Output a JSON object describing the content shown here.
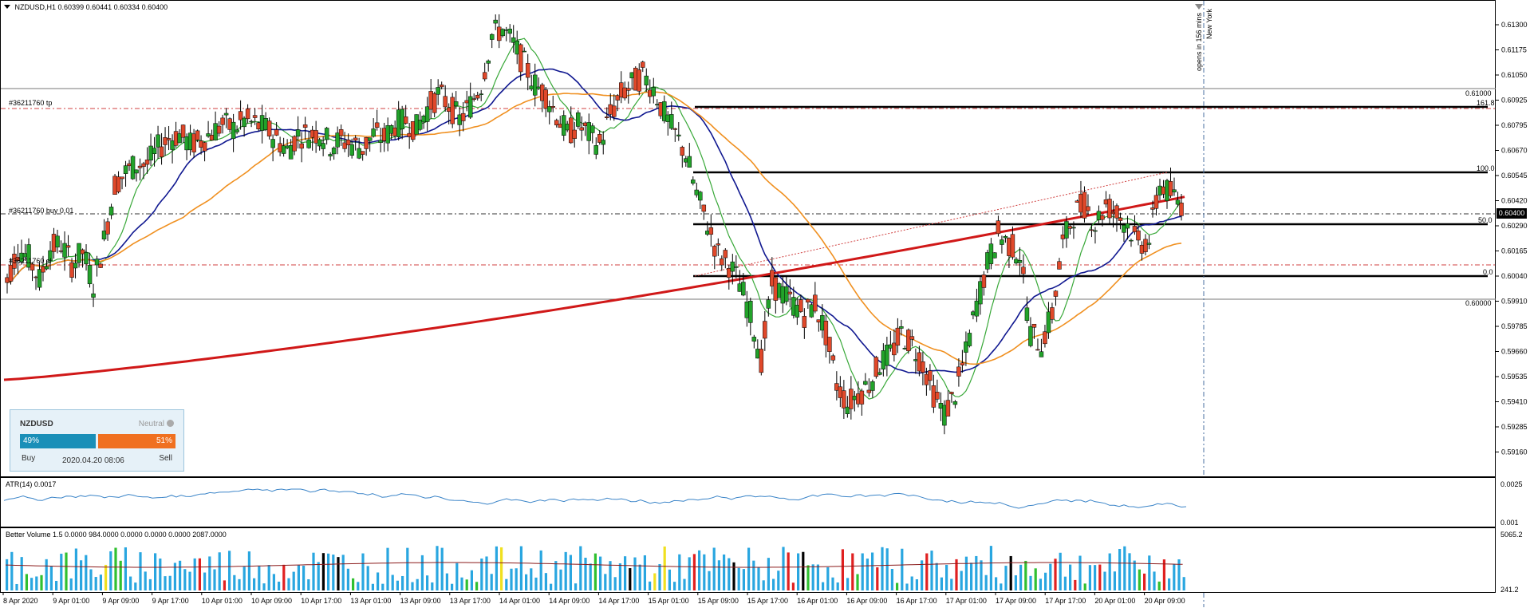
{
  "header": {
    "symbol_timeframe": "NZDUSD,H1",
    "ohlc": "0.60399 0.60441 0.60334 0.60400"
  },
  "price_axis": {
    "labels": [
      "0.61300",
      "0.61175",
      "0.61050",
      "0.60925",
      "0.60795",
      "0.60670",
      "0.60545",
      "0.60420",
      "0.60290",
      "0.60165",
      "0.60040",
      "0.59910",
      "0.59785",
      "0.59660",
      "0.59535",
      "0.59410",
      "0.59285",
      "0.59160"
    ],
    "current_price": "0.60400"
  },
  "session": {
    "countdown": "opens in 156 mins",
    "name": "New York"
  },
  "orders": {
    "tp_label": "#36211760 tp",
    "buy_label": "#36211760 buy 0.01",
    "sl_label": "#36211760 sl"
  },
  "levels": {
    "upper_round": "0.61000",
    "lower_round": "0.60000",
    "fib": [
      "161.8",
      "100.0",
      "50.0",
      "0.0"
    ]
  },
  "sentiment_widget": {
    "symbol": "NZDUSD",
    "status": "Neutral",
    "buy_percent": "49%",
    "sell_percent": "51%",
    "buy_label": "Buy",
    "sell_label": "Sell",
    "timestamp": "2020.04.20 08:06"
  },
  "atr": {
    "label": "ATR(14) 0.0017",
    "axis_top": "0.0025",
    "axis_bottom": "0.001"
  },
  "volume": {
    "label": "Better Volume 1.5 0.0000 984.0000 0.0000 0.0000 0.0000 2087.0000",
    "axis_top": "5065.2",
    "axis_bottom": "241.2"
  },
  "time_axis": {
    "labels": [
      "8 Apr 2020",
      "9 Apr 01:00",
      "9 Apr 09:00",
      "9 Apr 17:00",
      "10 Apr 01:00",
      "10 Apr 09:00",
      "10 Apr 17:00",
      "13 Apr 01:00",
      "13 Apr 09:00",
      "13 Apr 17:00",
      "14 Apr 01:00",
      "14 Apr 09:00",
      "14 Apr 17:00",
      "15 Apr 01:00",
      "15 Apr 09:00",
      "15 Apr 17:00",
      "16 Apr 01:00",
      "16 Apr 09:00",
      "16 Apr 17:00",
      "17 Apr 01:00",
      "17 Apr 09:00",
      "17 Apr 17:00",
      "20 Apr 01:00",
      "20 Apr 09:00"
    ]
  },
  "colors": {
    "bull": "#22a22a",
    "bear": "#e0482a",
    "ma_fast": "#38a838",
    "ma_mid": "#101890",
    "ma_slow": "#f09020",
    "ma_long": "#d01818",
    "atr": "#3a84c8",
    "vol": "#29a6e0"
  },
  "chart_data": {
    "type": "candlestick",
    "price_points": [
      0.6002,
      0.6018,
      0.6013,
      0.6002,
      0.6018,
      0.602,
      0.601,
      0.6016,
      0.6,
      0.6022,
      0.605,
      0.6056,
      0.606,
      0.606,
      0.6068,
      0.6073,
      0.6075,
      0.607,
      0.6072,
      0.6076,
      0.608,
      0.6078,
      0.6082,
      0.608,
      0.6078,
      0.6073,
      0.6067,
      0.6075,
      0.6075,
      0.6076,
      0.607,
      0.6072,
      0.607,
      0.6068,
      0.6075,
      0.6073,
      0.608,
      0.6082,
      0.6078,
      0.6088,
      0.6095,
      0.609,
      0.6082,
      0.609,
      0.61,
      0.6125,
      0.6128,
      0.612,
      0.611,
      0.61,
      0.6095,
      0.6085,
      0.6075,
      0.608,
      0.6075,
      0.607,
      0.6085,
      0.6095,
      0.61,
      0.6105,
      0.6098,
      0.6085,
      0.6075,
      0.6065,
      0.6045,
      0.603,
      0.6015,
      0.601,
      0.6,
      0.5985,
      0.5962,
      0.6,
      0.5995,
      0.599,
      0.5985,
      0.599,
      0.5975,
      0.595,
      0.594,
      0.5945,
      0.595,
      0.596,
      0.5965,
      0.5975,
      0.597,
      0.596,
      0.5945,
      0.5935,
      0.5945,
      0.5965,
      0.599,
      0.601,
      0.6025,
      0.602,
      0.6015,
      0.5975,
      0.597,
      0.5985,
      0.602,
      0.6035,
      0.604,
      0.603,
      0.604,
      0.6035,
      0.603,
      0.602,
      0.6022,
      0.605,
      0.6045,
      0.604
    ]
  }
}
